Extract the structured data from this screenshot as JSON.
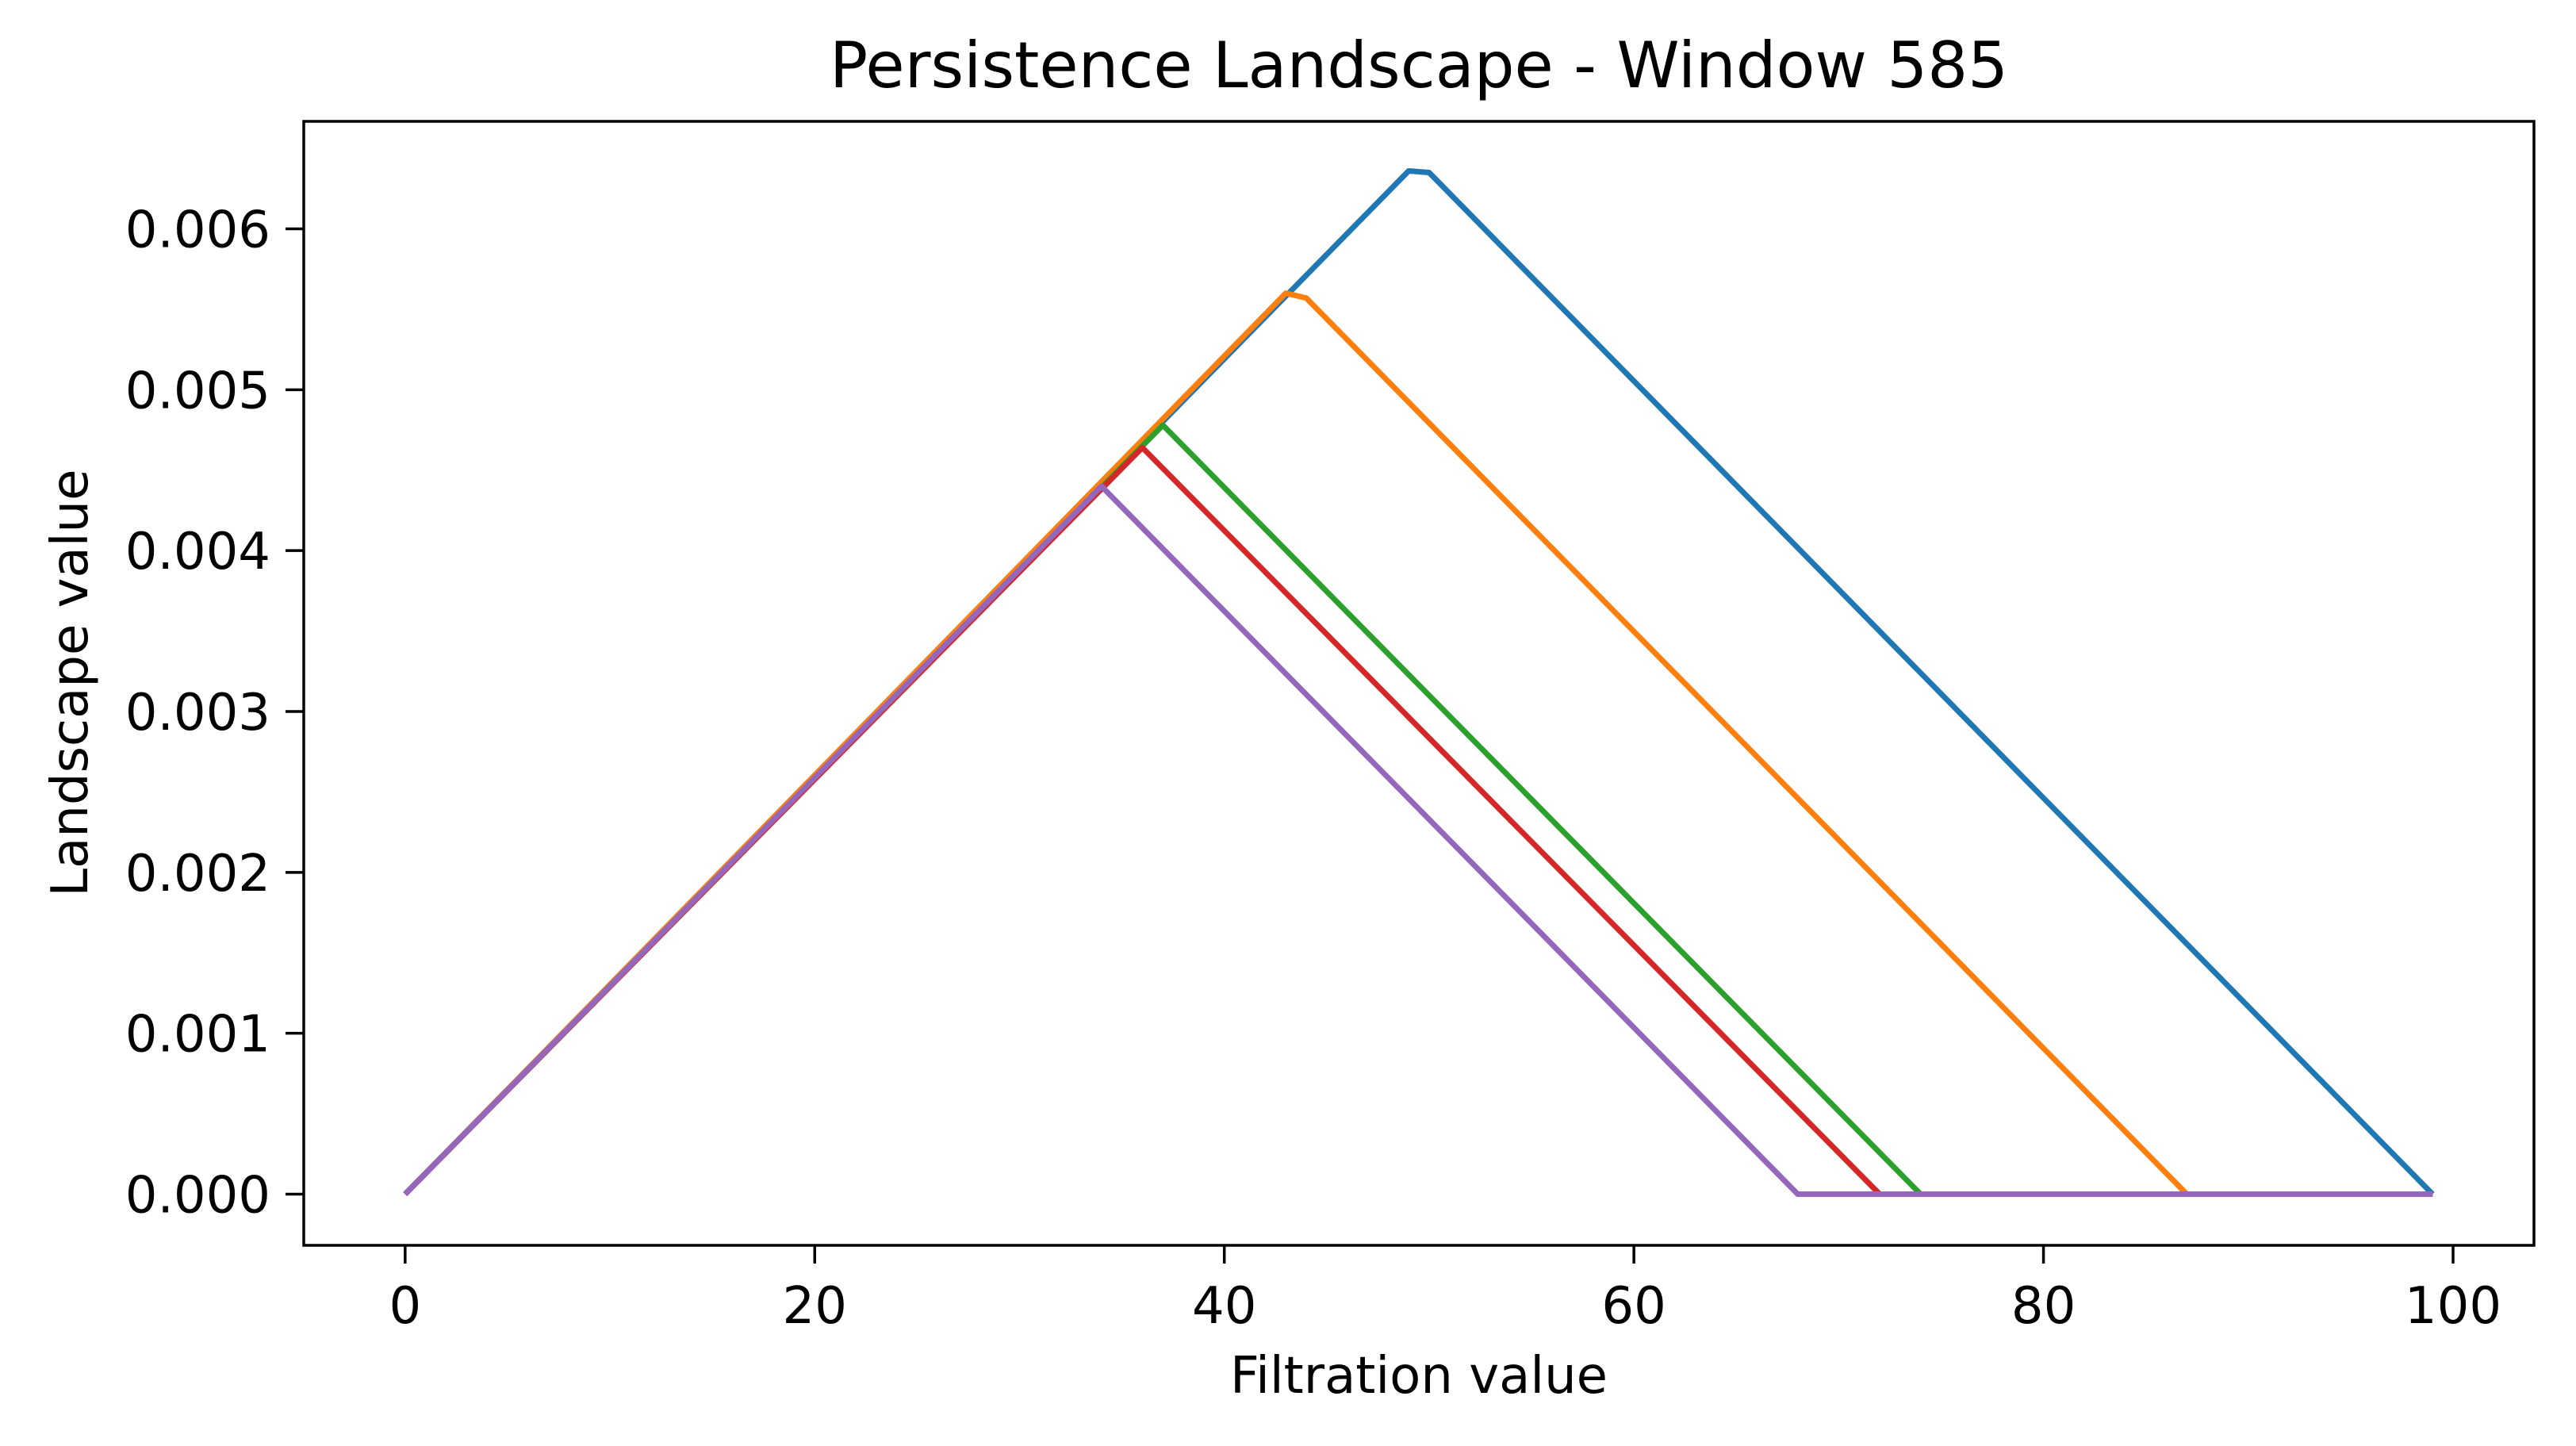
{
  "figure": {
    "background_color": "#ffffff",
    "spine_color": "#000000",
    "text_color": "#000000"
  },
  "chart_data": {
    "type": "line",
    "title": "Persistence Landscape - Window 585",
    "xlabel": "Filtration value",
    "ylabel": "Landscape value",
    "xlim": [
      -4.95,
      103.95
    ],
    "ylim": [
      -0.000318,
      0.006668
    ],
    "grid": false,
    "legend": "none",
    "xtick_values": [
      0,
      20,
      40,
      60,
      80,
      100
    ],
    "xtick_labels": [
      "0",
      "20",
      "40",
      "60",
      "80",
      "100"
    ],
    "ytick_values": [
      0.0,
      0.001,
      0.002,
      0.003,
      0.004,
      0.005,
      0.006
    ],
    "ytick_labels": [
      "0.000",
      "0.001",
      "0.002",
      "0.003",
      "0.004",
      "0.005",
      "0.006"
    ],
    "x_sample_range": [
      0,
      99
    ],
    "series": [
      {
        "name": "landscape-1",
        "color": "#1f77b4",
        "points": [
          [
            0,
            0
          ],
          [
            49,
            0.00636
          ],
          [
            50,
            0.00635
          ],
          [
            99,
            0
          ]
        ]
      },
      {
        "name": "landscape-2",
        "color": "#ff7f0e",
        "points": [
          [
            0,
            0
          ],
          [
            43,
            0.0056
          ],
          [
            44,
            0.00557
          ],
          [
            87,
            0
          ],
          [
            99,
            0
          ]
        ]
      },
      {
        "name": "landscape-3",
        "color": "#2ca02c",
        "points": [
          [
            0,
            0
          ],
          [
            37,
            0.00478
          ],
          [
            74,
            0
          ],
          [
            99,
            0
          ]
        ]
      },
      {
        "name": "landscape-4",
        "color": "#d62728",
        "points": [
          [
            0,
            0
          ],
          [
            36,
            0.00464
          ],
          [
            72,
            0
          ],
          [
            99,
            0
          ]
        ]
      },
      {
        "name": "landscape-5",
        "color": "#9467bd",
        "points": [
          [
            0,
            0
          ],
          [
            34,
            0.0044
          ],
          [
            68,
            0
          ],
          [
            99,
            0
          ]
        ]
      }
    ]
  }
}
